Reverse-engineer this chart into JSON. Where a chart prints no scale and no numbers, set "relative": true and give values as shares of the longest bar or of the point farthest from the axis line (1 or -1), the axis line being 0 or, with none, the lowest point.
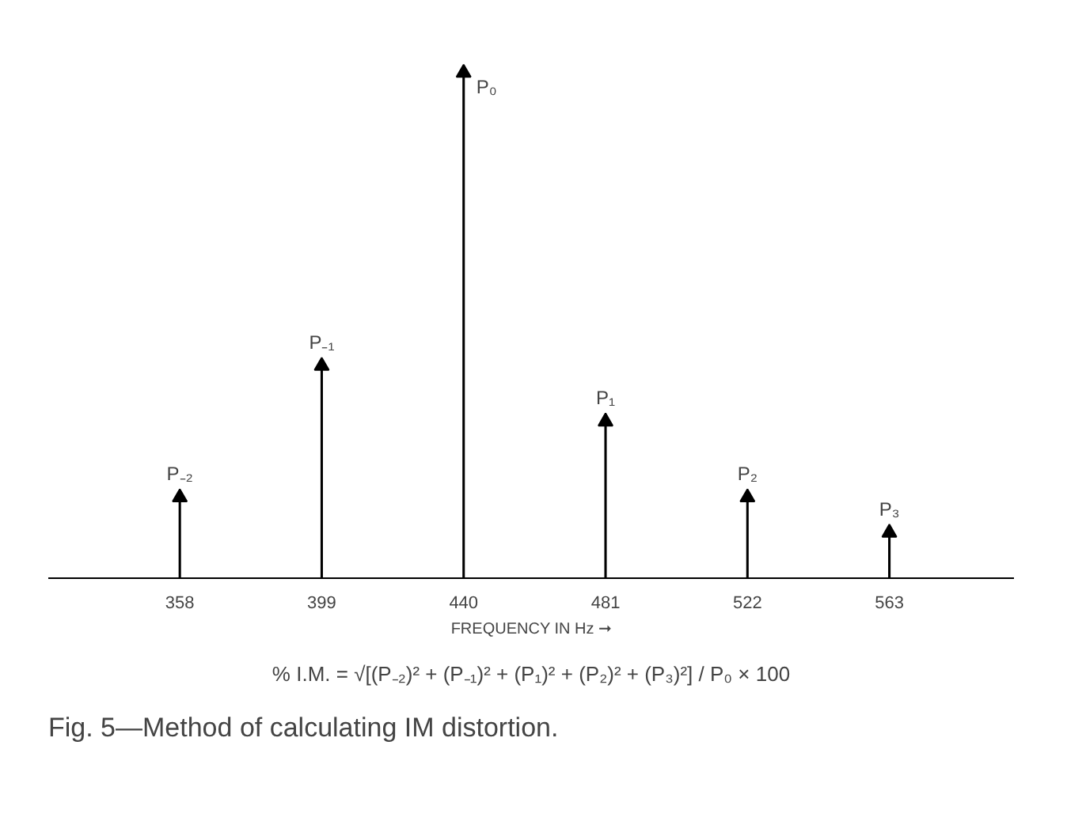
{
  "chart_data": {
    "type": "lollipop",
    "title": "Fig. 5—Method of calculating IM distortion.",
    "xlabel": "FREQUENCY IN Hz ➞",
    "x": [
      358,
      399,
      440,
      481,
      522,
      563
    ],
    "values": [
      0.16,
      0.42,
      1,
      0.31,
      0.16,
      0.09
    ],
    "relative": true,
    "color": "#000000",
    "marker": "triangle",
    "grid": false,
    "xlim": [
      320,
      599
    ],
    "xticks": [
      358,
      399,
      440,
      481,
      522,
      563
    ],
    "annotations": [
      {
        "text": "P₋₂",
        "x": 358,
        "y": 0.16
      },
      {
        "text": "P₋₁",
        "x": 399,
        "y": 0.42
      },
      {
        "text": "P₀",
        "x": 440,
        "y": 1
      },
      {
        "text": "P₁",
        "x": 481,
        "y": 0.31
      },
      {
        "text": "P₂",
        "x": 522,
        "y": 0.16
      },
      {
        "text": "P₃",
        "x": 563,
        "y": 0.09
      },
      "% I.M. = √[(P₋₂)² + (P₋₁)² + (P₁)² + (P₂)² + (P₃)²] / P₀ × 100"
    ]
  }
}
